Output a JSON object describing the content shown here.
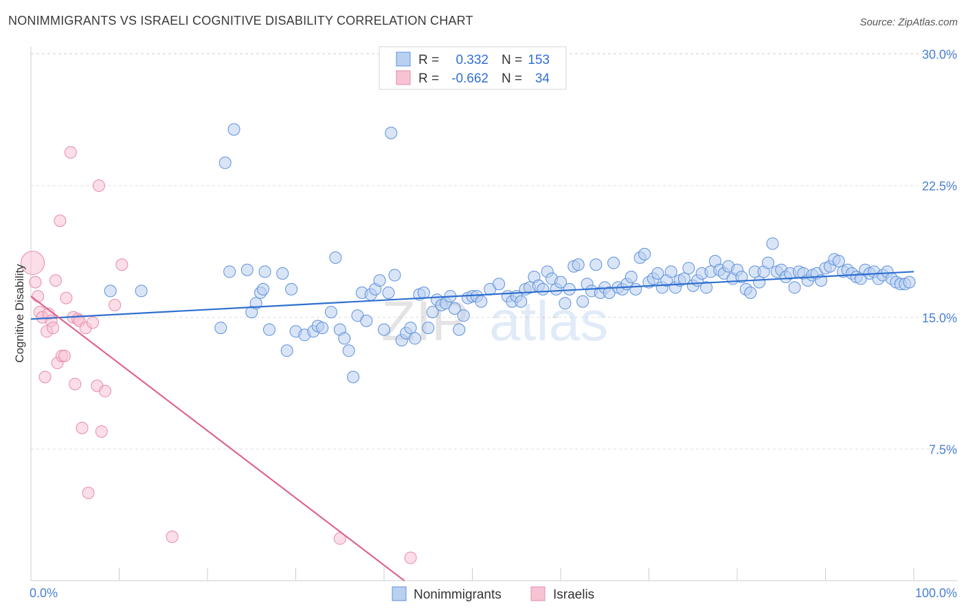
{
  "header": {
    "title": "NONIMMIGRANTS VS ISRAELI COGNITIVE DISABILITY CORRELATION CHART",
    "source": "Source: ZipAtlas.com"
  },
  "watermark": {
    "part1": "ZIP",
    "part2": "atlas"
  },
  "colors": {
    "blue": "#5b8fdc",
    "blue_fill": "#b9d0f1",
    "blue_line": "#2e6fcf",
    "pink": "#e58aa8",
    "pink_fill": "#f7c3d3",
    "pink_line": "#e0638e",
    "tick_text": "#4a7fd4",
    "grid": "#dddddd"
  },
  "legend": {
    "rows": [
      {
        "r_label": "R =",
        "r_value": "0.332",
        "n_label": "N =",
        "n_value": "153",
        "color": "blue"
      },
      {
        "r_label": "R =",
        "r_value": "-0.662",
        "n_label": "N =",
        "n_value": "34",
        "color": "pink"
      }
    ]
  },
  "chart_data": {
    "type": "scatter",
    "title": "NONIMMIGRANTS VS ISRAELI COGNITIVE DISABILITY CORRELATION CHART",
    "xlabel": "",
    "ylabel": "Cognitive Disability",
    "xlim": [
      0,
      100
    ],
    "ylim": [
      0,
      31.5
    ],
    "x_tick_labels": [
      "0.0%",
      "100.0%"
    ],
    "y_ticks": [
      7.5,
      15.0,
      22.5,
      30.0
    ],
    "y_tick_labels": [
      "7.5%",
      "15.0%",
      "22.5%",
      "30.0%"
    ],
    "grid": "horizontal dashed",
    "legend_position": "top-center and bottom",
    "series": [
      {
        "name": "Nonimmigrants",
        "color": "blue",
        "trend": {
          "x": [
            0,
            100
          ],
          "y": [
            14.9,
            17.6
          ]
        },
        "points": [
          [
            9,
            16.5
          ],
          [
            12.5,
            16.5
          ],
          [
            22,
            23.8
          ],
          [
            23,
            25.7
          ],
          [
            21.5,
            14.4
          ],
          [
            22.5,
            17.6
          ],
          [
            24.5,
            17.7
          ],
          [
            25,
            15.3
          ],
          [
            25.5,
            15.8
          ],
          [
            26,
            16.4
          ],
          [
            26.3,
            16.6
          ],
          [
            26.5,
            17.6
          ],
          [
            27,
            14.3
          ],
          [
            28.5,
            17.5
          ],
          [
            29,
            13.1
          ],
          [
            29.5,
            16.6
          ],
          [
            30,
            14.2
          ],
          [
            31,
            14
          ],
          [
            32,
            14.2
          ],
          [
            32.5,
            14.5
          ],
          [
            33,
            14.4
          ],
          [
            34,
            15.3
          ],
          [
            34.5,
            18.4
          ],
          [
            35,
            14.3
          ],
          [
            35.5,
            13.8
          ],
          [
            36,
            13.1
          ],
          [
            36.5,
            11.6
          ],
          [
            37,
            15.1
          ],
          [
            37.5,
            16.4
          ],
          [
            38,
            14.8
          ],
          [
            38.5,
            16.3
          ],
          [
            39,
            16.6
          ],
          [
            39.5,
            17.1
          ],
          [
            40,
            14.3
          ],
          [
            40.5,
            16.4
          ],
          [
            40.8,
            25.5
          ],
          [
            41.2,
            17.4
          ],
          [
            42,
            13.7
          ],
          [
            42.5,
            14.1
          ],
          [
            43,
            14.4
          ],
          [
            43.5,
            13.8
          ],
          [
            44,
            16.3
          ],
          [
            44.5,
            16.4
          ],
          [
            45,
            14.4
          ],
          [
            45.5,
            15.3
          ],
          [
            46,
            16
          ],
          [
            46.5,
            15.7
          ],
          [
            47,
            15.8
          ],
          [
            47.5,
            16.2
          ],
          [
            48,
            15.5
          ],
          [
            48.5,
            14.3
          ],
          [
            49,
            15.1
          ],
          [
            49.5,
            16.1
          ],
          [
            50,
            16.2
          ],
          [
            50.5,
            16.2
          ],
          [
            51,
            15.9
          ],
          [
            52,
            16.6
          ],
          [
            53,
            16.9
          ],
          [
            54,
            16.2
          ],
          [
            54.5,
            15.9
          ],
          [
            55,
            16.2
          ],
          [
            55.5,
            15.9
          ],
          [
            56,
            16.6
          ],
          [
            56.5,
            16.7
          ],
          [
            57,
            17.3
          ],
          [
            57.5,
            16.8
          ],
          [
            58,
            16.6
          ],
          [
            58.5,
            17.6
          ],
          [
            59,
            17.2
          ],
          [
            59.5,
            16.6
          ],
          [
            60,
            17
          ],
          [
            60.5,
            15.8
          ],
          [
            61,
            16.6
          ],
          [
            61.5,
            17.9
          ],
          [
            62,
            18
          ],
          [
            62.5,
            15.9
          ],
          [
            63,
            16.9
          ],
          [
            63.5,
            16.5
          ],
          [
            64,
            18
          ],
          [
            64.5,
            16.4
          ],
          [
            65,
            16.7
          ],
          [
            65.5,
            16.4
          ],
          [
            66,
            18.1
          ],
          [
            66.5,
            16.7
          ],
          [
            67,
            16.6
          ],
          [
            67.5,
            16.9
          ],
          [
            68,
            17.3
          ],
          [
            68.5,
            16.6
          ],
          [
            69,
            18.4
          ],
          [
            69.5,
            18.6
          ],
          [
            70,
            17
          ],
          [
            70.5,
            17.2
          ],
          [
            71,
            17.5
          ],
          [
            71.5,
            16.7
          ],
          [
            72,
            17.1
          ],
          [
            72.5,
            17.6
          ],
          [
            73,
            16.7
          ],
          [
            73.5,
            17.1
          ],
          [
            74,
            17.2
          ],
          [
            74.5,
            17.8
          ],
          [
            75,
            16.8
          ],
          [
            75.5,
            17.1
          ],
          [
            76,
            17.5
          ],
          [
            76.5,
            16.7
          ],
          [
            77,
            17.6
          ],
          [
            77.5,
            18.2
          ],
          [
            78,
            17.7
          ],
          [
            78.5,
            17.5
          ],
          [
            79,
            17.9
          ],
          [
            79.5,
            17.2
          ],
          [
            80,
            17.7
          ],
          [
            80.5,
            17.3
          ],
          [
            81,
            16.6
          ],
          [
            81.5,
            16.4
          ],
          [
            82,
            17.6
          ],
          [
            82.5,
            17
          ],
          [
            83,
            17.6
          ],
          [
            83.5,
            18.1
          ],
          [
            84,
            19.2
          ],
          [
            84.5,
            17.6
          ],
          [
            85,
            17.7
          ],
          [
            85.5,
            17.3
          ],
          [
            86,
            17.5
          ],
          [
            86.5,
            16.7
          ],
          [
            87,
            17.6
          ],
          [
            87.5,
            17.5
          ],
          [
            88,
            17.1
          ],
          [
            88.5,
            17.4
          ],
          [
            89,
            17.5
          ],
          [
            89.5,
            17.1
          ],
          [
            90,
            17.8
          ],
          [
            90.5,
            17.9
          ],
          [
            91,
            18.3
          ],
          [
            91.5,
            18.2
          ],
          [
            92,
            17.6
          ],
          [
            92.5,
            17.7
          ],
          [
            93,
            17.5
          ],
          [
            93.5,
            17.3
          ],
          [
            94,
            17.2
          ],
          [
            94.5,
            17.7
          ],
          [
            95,
            17.5
          ],
          [
            95.5,
            17.6
          ],
          [
            96,
            17.2
          ],
          [
            96.5,
            17.4
          ],
          [
            97,
            17.6
          ],
          [
            97.5,
            17.2
          ],
          [
            98,
            17
          ],
          [
            98.5,
            16.9
          ],
          [
            99,
            16.9
          ],
          [
            99.5,
            17
          ]
        ]
      },
      {
        "name": "Israelis",
        "color": "pink",
        "trend": {
          "x": [
            0,
            42.3
          ],
          "y": [
            16.2,
            0
          ]
        },
        "points": [
          [
            0.2,
            18.1
          ],
          [
            0.5,
            17
          ],
          [
            0.8,
            16.2
          ],
          [
            1,
            15.3
          ],
          [
            1.3,
            15
          ],
          [
            1.6,
            11.6
          ],
          [
            1.8,
            14.2
          ],
          [
            2,
            15.2
          ],
          [
            2.3,
            14.8
          ],
          [
            2.5,
            14.4
          ],
          [
            2.8,
            17.1
          ],
          [
            3,
            12.4
          ],
          [
            3.3,
            20.5
          ],
          [
            3.5,
            12.8
          ],
          [
            3.8,
            12.8
          ],
          [
            4,
            16.1
          ],
          [
            4.5,
            24.4
          ],
          [
            4.8,
            15
          ],
          [
            5,
            11.2
          ],
          [
            5.3,
            14.9
          ],
          [
            5.5,
            14.8
          ],
          [
            5.8,
            8.7
          ],
          [
            6.2,
            14.4
          ],
          [
            6.5,
            5
          ],
          [
            7,
            14.7
          ],
          [
            7.5,
            11.1
          ],
          [
            7.7,
            22.5
          ],
          [
            8,
            8.5
          ],
          [
            8.4,
            10.8
          ],
          [
            9.5,
            15.7
          ],
          [
            10.3,
            18
          ],
          [
            16,
            2.5
          ],
          [
            35,
            2.4
          ],
          [
            43,
            1.3
          ]
        ]
      }
    ]
  }
}
